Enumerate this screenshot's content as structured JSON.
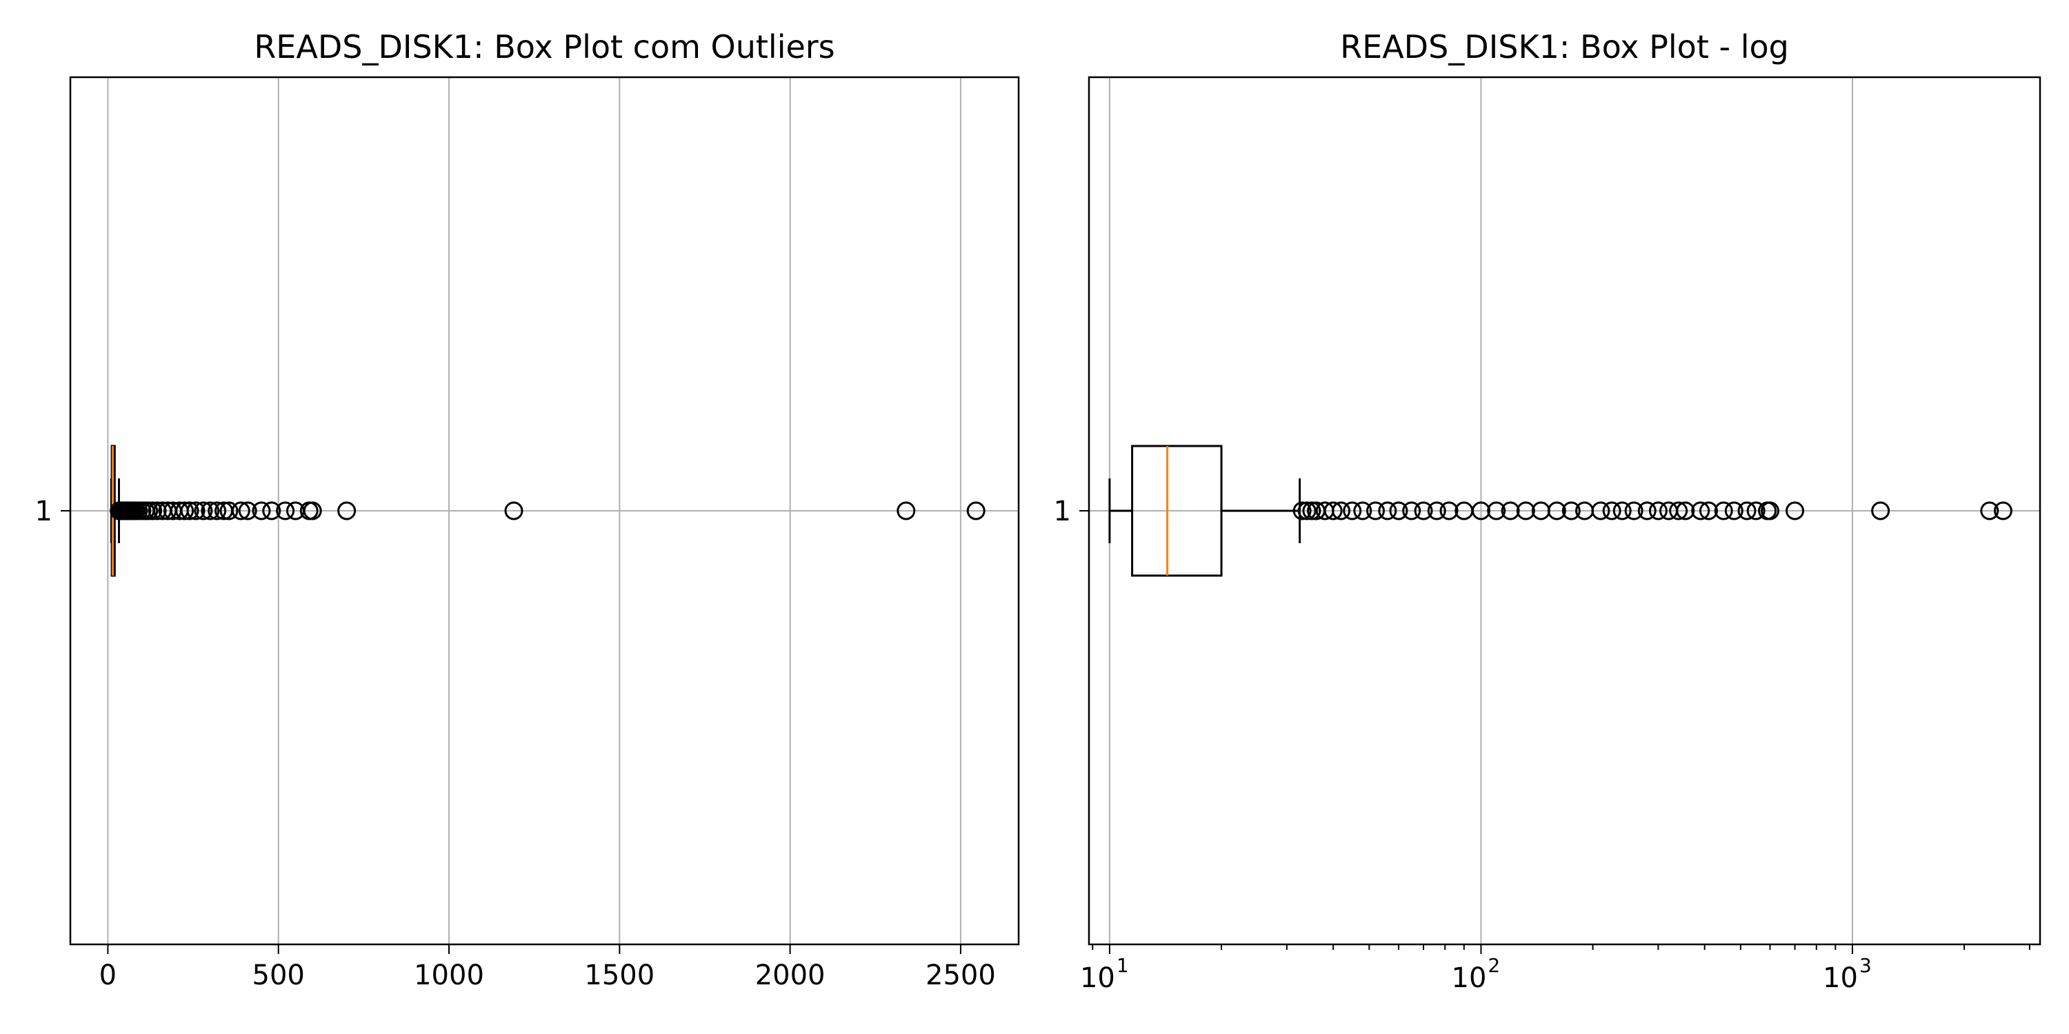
{
  "chart_data": [
    {
      "type": "boxplot",
      "orientation": "horizontal",
      "title": "READS_DISK1: Box Plot com Outliers",
      "xscale": "linear",
      "xlim": [
        -110,
        2670
      ],
      "xticks": [
        0,
        500,
        1000,
        1500,
        2000,
        2500
      ],
      "xtick_labels": [
        "0",
        "500",
        "1000",
        "1500",
        "2000",
        "2500"
      ],
      "ytick_labels": [
        "1"
      ],
      "grid": true,
      "box": {
        "label": "1",
        "whisker_low": 10,
        "q1": 11.5,
        "median": 14.3,
        "q3": 20,
        "whisker_high": 32.5,
        "outliers": [
          33,
          34,
          35,
          36,
          38,
          40,
          42,
          45,
          48,
          52,
          56,
          60,
          65,
          70,
          76,
          82,
          90,
          100,
          110,
          120,
          132,
          145,
          160,
          175,
          190,
          210,
          225,
          240,
          258,
          280,
          300,
          320,
          340,
          355,
          390,
          410,
          450,
          480,
          520,
          550,
          590,
          600,
          700,
          1190,
          2340,
          2545
        ]
      },
      "colors": {
        "box": "#000000",
        "median": "#ff7f0e",
        "grid": "#b0b0b0"
      }
    },
    {
      "type": "boxplot",
      "orientation": "horizontal",
      "title": "READS_DISK1: Box Plot - log",
      "xscale": "log",
      "xlim": [
        8.8,
        3200
      ],
      "xticks": [
        10,
        100,
        1000
      ],
      "xtick_labels": [
        {
          "base": "10",
          "exp": "1"
        },
        {
          "base": "10",
          "exp": "2"
        },
        {
          "base": "10",
          "exp": "3"
        }
      ],
      "ytick_labels": [
        "1"
      ],
      "grid": true,
      "box": {
        "label": "1",
        "whisker_low": 10,
        "q1": 11.5,
        "median": 14.3,
        "q3": 20,
        "whisker_high": 32.5,
        "outliers": [
          33,
          34,
          35,
          36,
          38,
          40,
          42,
          45,
          48,
          52,
          56,
          60,
          65,
          70,
          76,
          82,
          90,
          100,
          110,
          120,
          132,
          145,
          160,
          175,
          190,
          210,
          225,
          240,
          258,
          280,
          300,
          320,
          340,
          355,
          390,
          410,
          450,
          480,
          520,
          550,
          590,
          600,
          700,
          1190,
          2340,
          2545
        ]
      },
      "colors": {
        "box": "#000000",
        "median": "#ff7f0e",
        "grid": "#b0b0b0"
      }
    }
  ]
}
